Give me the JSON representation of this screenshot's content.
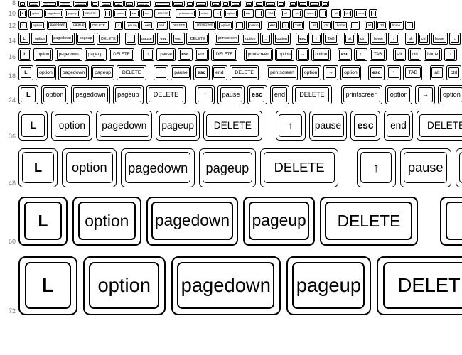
{
  "background_color": "#ffffff",
  "label_color": "#808080",
  "border_color": "#000000",
  "rows": [
    {
      "size": 8,
      "gap": 1
    },
    {
      "size": 10,
      "gap": 2
    },
    {
      "size": 12,
      "gap": 2
    },
    {
      "size": 14,
      "gap": 2
    },
    {
      "size": 16,
      "gap": 3
    },
    {
      "size": 18,
      "gap": 3
    },
    {
      "size": 24,
      "gap": 4
    },
    {
      "size": 36,
      "gap": 5
    },
    {
      "size": 48,
      "gap": 6
    },
    {
      "size": 60,
      "gap": 7
    },
    {
      "size": 72,
      "gap": 8
    }
  ],
  "keys": [
    {
      "text": "L",
      "w": 1.0,
      "bold": true,
      "name": "key-l"
    },
    {
      "text": "option",
      "w": 1.4,
      "name": "key-option"
    },
    {
      "text": "page\ndown",
      "w": 1.3,
      "multi": true,
      "name": "key-page-down"
    },
    {
      "text": "page\nup",
      "w": 1.3,
      "multi": true,
      "name": "key-page-up"
    },
    {
      "text": "DELETE",
      "w": 2.0,
      "name": "key-delete"
    },
    {
      "gap": 1.0
    },
    {
      "text": "↑",
      "w": 1.0,
      "arrow": true,
      "name": "key-up-arrow"
    },
    {
      "text": "pause",
      "w": 1.3,
      "name": "key-pause"
    },
    {
      "text": "esc",
      "w": 1.0,
      "bold": true,
      "name": "key-esc"
    },
    {
      "text": "end",
      "w": 1.0,
      "name": "key-end"
    },
    {
      "text": "DELETE",
      "w": 2.0,
      "name": "key-delete-2"
    },
    {
      "gap": 1.0
    },
    {
      "text": "print\nscreen",
      "w": 1.4,
      "multi": true,
      "name": "key-print-screen"
    },
    {
      "text": "option",
      "w": 1.4,
      "name": "key-option-2"
    },
    {
      "text": "→",
      "w": 1.0,
      "arrow": true,
      "name": "key-right-arrow"
    },
    {
      "text": "option",
      "w": 1.4,
      "name": "key-option-3"
    },
    {
      "gap": 1.0
    },
    {
      "text": "esc",
      "w": 1.0,
      "bold": true,
      "name": "key-esc-2"
    },
    {
      "text": "↑",
      "w": 1.0,
      "arrow": true,
      "name": "key-up-arrow-2"
    },
    {
      "text": "TAB",
      "w": 1.3,
      "name": "key-tab"
    },
    {
      "gap": 1.0
    },
    {
      "text": "alt",
      "w": 1.0,
      "name": "key-alt"
    },
    {
      "text": "ctrl",
      "w": 1.0,
      "name": "key-ctrl"
    },
    {
      "text": "home",
      "w": 1.0,
      "name": "key-home"
    },
    {
      "text": "↓",
      "w": 1.0,
      "arrow": true,
      "name": "key-down-arrow"
    },
    {
      "gap": 1.0
    },
    {
      "text": "alt",
      "w": 1.0,
      "name": "key-alt-2"
    },
    {
      "text": "ctrl",
      "w": 1.0,
      "name": "key-ctrl-2"
    },
    {
      "text": "home",
      "w": 1.0,
      "name": "key-home-2"
    },
    {
      "text": "↓",
      "w": 1.0,
      "arrow": true,
      "name": "key-down-arrow-2"
    }
  ]
}
